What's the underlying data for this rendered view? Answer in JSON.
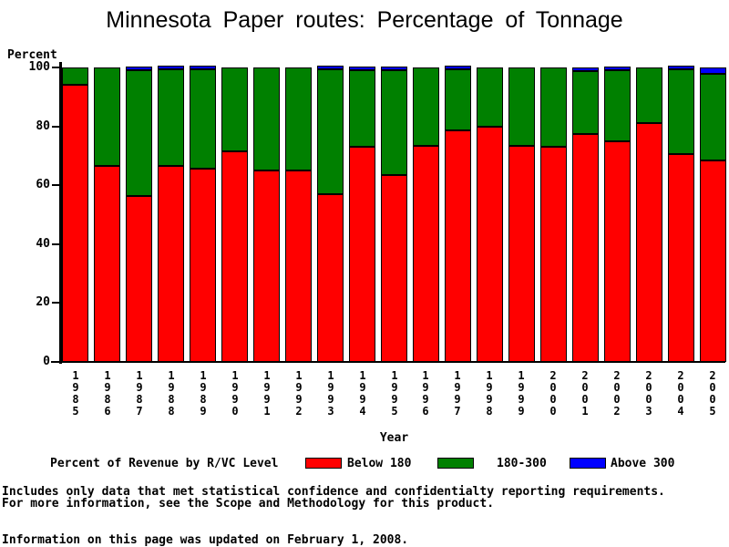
{
  "title": "Minnesota Paper routes: Percentage of Tonnage",
  "y_axis_label": "Percent",
  "x_axis_label": "Year",
  "legend": {
    "title": "Percent of Revenue by R/VC Level",
    "items": [
      {
        "label": "Below 180",
        "color": "#ff0000"
      },
      {
        "label": "180-300",
        "color": "#008000"
      },
      {
        "label": "Above 300",
        "color": "#0000ff"
      }
    ]
  },
  "notes": [
    "Includes only data that met statistical confidence and confidentialty reporting requirements.",
    "For more information, see the Scope and Methodology for this product.",
    "Information on this page was updated on February 1, 2008."
  ],
  "chart_data": {
    "type": "bar",
    "stacked": true,
    "title": "Minnesota Paper routes: Percentage of Tonnage",
    "xlabel": "Year",
    "ylabel": "Percent",
    "ylim": [
      0,
      100
    ],
    "yticks": [
      0,
      20,
      40,
      60,
      80,
      100
    ],
    "grid": false,
    "legend_position": "bottom",
    "categories": [
      "1985",
      "1986",
      "1987",
      "1988",
      "1989",
      "1990",
      "1991",
      "1992",
      "1993",
      "1994",
      "1995",
      "1996",
      "1997",
      "1998",
      "1999",
      "2000",
      "2001",
      "2002",
      "2003",
      "2004",
      "2005"
    ],
    "series": [
      {
        "name": "Below 180",
        "color": "#ff0000",
        "values": [
          94,
          66.5,
          56.5,
          66.5,
          65.5,
          71.5,
          65,
          65,
          57,
          73,
          63.5,
          73.5,
          78.5,
          80,
          73.5,
          73,
          77.5,
          75,
          81,
          70.5,
          68.5
        ]
      },
      {
        "name": "180-300",
        "color": "#008000",
        "values": [
          6,
          33.5,
          42.5,
          32.8,
          33.8,
          28.5,
          35,
          35,
          42.4,
          26,
          35.5,
          26.5,
          20.9,
          20,
          26.5,
          27,
          21.3,
          24.2,
          19,
          28.8,
          29.2
        ]
      },
      {
        "name": "Above 300",
        "color": "#0000ff",
        "values": [
          0,
          0,
          1,
          0.7,
          0.7,
          0,
          0,
          0,
          0.6,
          1,
          1,
          0,
          0.6,
          0,
          0,
          0,
          1.2,
          0.8,
          0,
          0.7,
          2.3
        ]
      }
    ]
  }
}
